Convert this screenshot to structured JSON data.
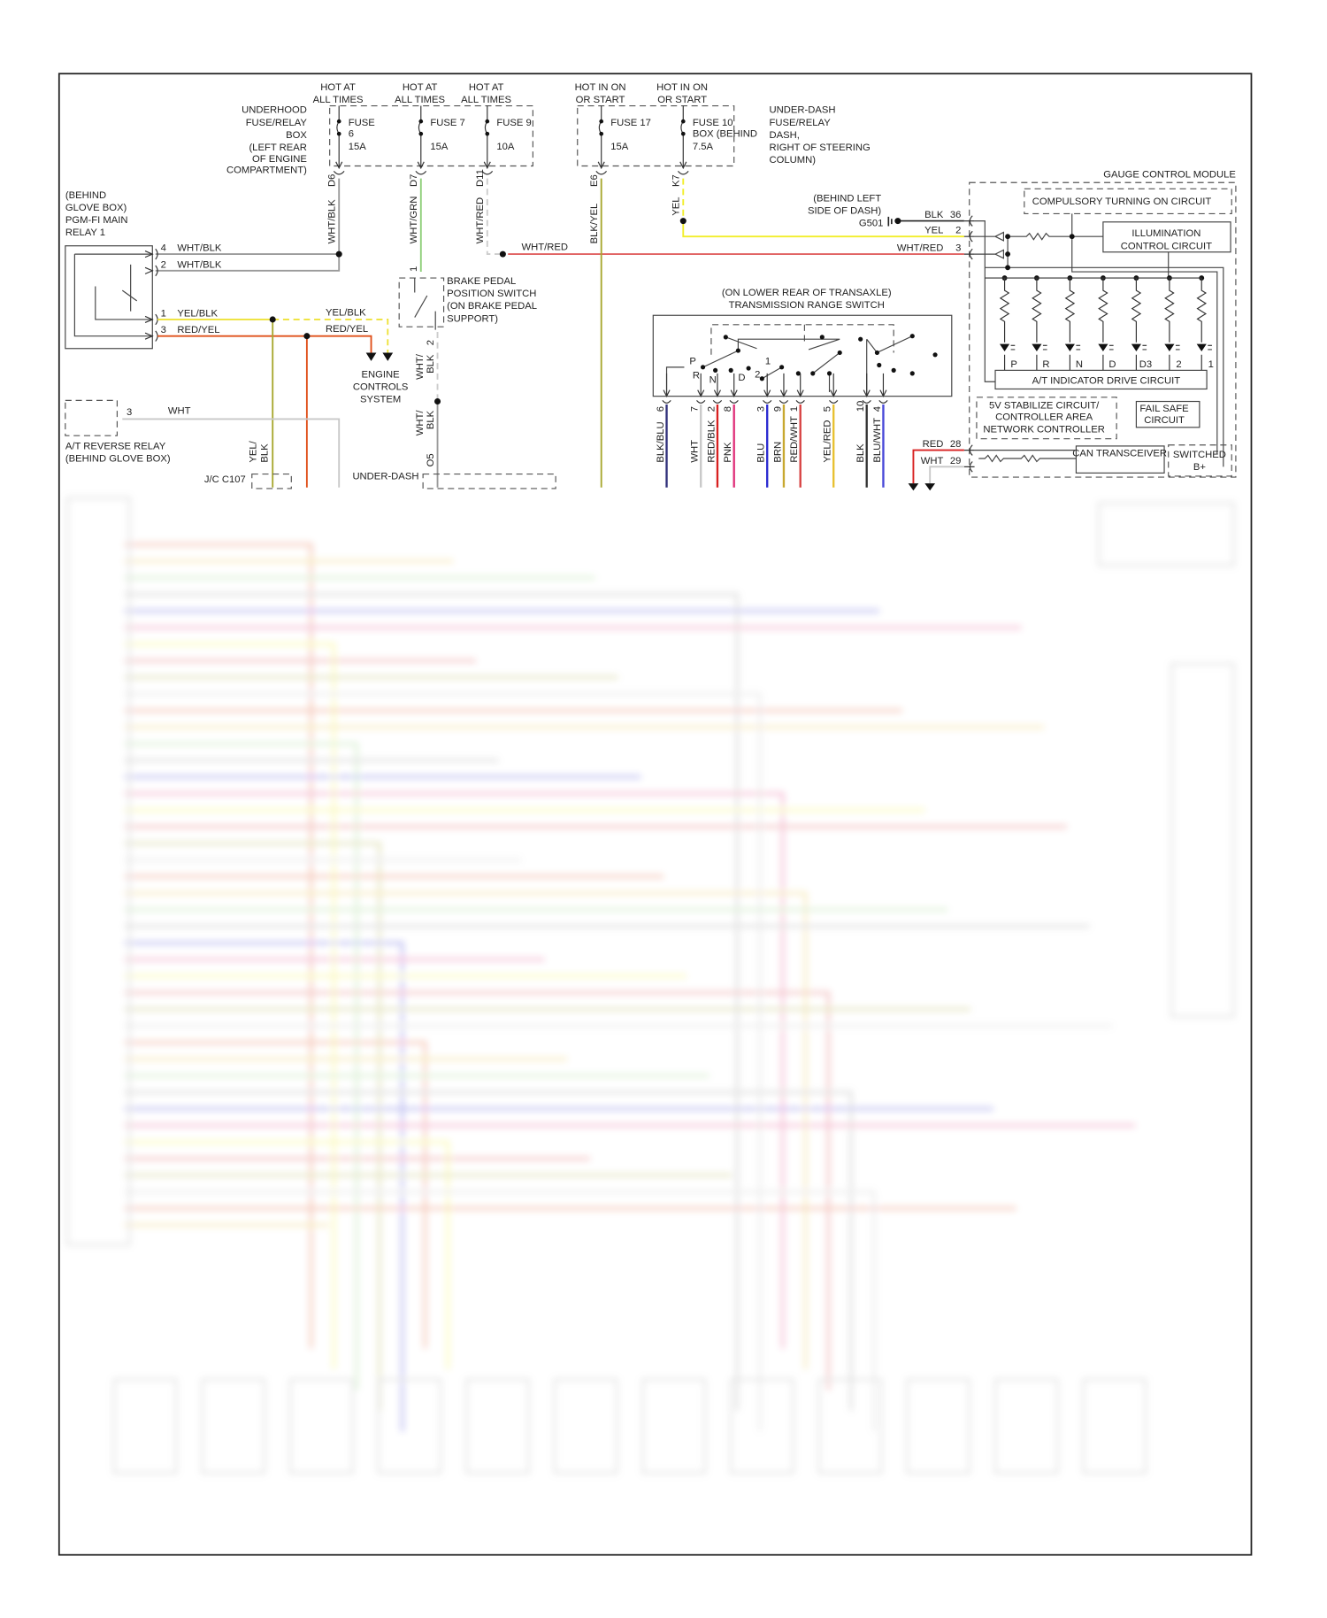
{
  "colors": {
    "wht_blk": "#9a9a9a",
    "wht_grn": "#8fd07a",
    "wht_red": "#cccccc",
    "blk_yel": "#a8a830",
    "yel": "#f2ee2a",
    "yel_blk": "#eee23a",
    "red_yel": "#e0501a",
    "red": "#d82020",
    "wht": "#c8c8c8",
    "blk_blu": "#30307a",
    "pnk": "#e0307a",
    "blu": "#2a2ad0",
    "brn": "#c8a830",
    "red_wht": "#d84040",
    "yel_red": "#e8c030",
    "blk": "#333333",
    "blu_wht": "#4848d8"
  },
  "fuses": {
    "hot": [
      [
        "HOT AT",
        "ALL TIMES"
      ],
      [
        "HOT AT",
        "ALL TIMES"
      ],
      [
        "HOT AT",
        "ALL TIMES"
      ],
      [
        "HOT IN ON",
        "OR START"
      ],
      [
        "HOT IN ON",
        "OR START"
      ]
    ],
    "underhood_label": [
      "UNDERHOOD",
      "FUSE/RELAY",
      "BOX",
      "(LEFT REAR",
      "OF ENGINE",
      "COMPARTMENT)"
    ],
    "items": [
      [
        "FUSE",
        "6",
        "15A"
      ],
      [
        "FUSE 7",
        "",
        "15A"
      ],
      [
        "FUSE 9",
        "",
        "10A"
      ],
      [
        "FUSE 17",
        "",
        "15A"
      ],
      [
        "FUSE 10",
        "BOX (BEHIND",
        "7.5A"
      ]
    ],
    "underdash_label": [
      "UNDER-DASH",
      "FUSE/RELAY",
      "DASH,",
      "RIGHT OF STEERING",
      "COLUMN)"
    ],
    "connectors": [
      "D6",
      "D7",
      "D11",
      "E6",
      "K7"
    ],
    "wires": [
      "WHT/BLK",
      "WHT/GRN",
      "WHT/RED",
      "BLK/YEL",
      "YEL"
    ]
  },
  "relay": {
    "label": [
      "(BEHIND",
      "GLOVE BOX)",
      "PGM-FI MAIN",
      "RELAY 1"
    ],
    "pins": [
      "4",
      "2",
      "1",
      "3"
    ],
    "wires": [
      "WHT/BLK",
      "WHT/BLK",
      "YEL/BLK",
      "RED/YEL"
    ],
    "wires2": [
      "YEL/BLK",
      "RED/YEL"
    ]
  },
  "wht_red_label": "WHT/RED",
  "brake_switch": {
    "label": [
      "BRAKE PEDAL",
      "POSITION SWITCH",
      "(ON BRAKE PEDAL",
      "SUPPORT)"
    ],
    "pins": [
      "1",
      "2"
    ],
    "wire": "WHT/BLK",
    "wire_lines": [
      "WHT/",
      "BLK"
    ],
    "pin_o5": "O5"
  },
  "engine_controls": [
    "ENGINE",
    "CONTROLS",
    "SYSTEM"
  ],
  "reverse_relay": {
    "label": [
      "A/T REVERSE RELAY",
      "(BEHIND GLOVE BOX)"
    ],
    "pin": "3",
    "wire": "WHT"
  },
  "yel_blk_vertical": [
    "YEL/",
    "BLK"
  ],
  "jc": "J/C C107",
  "underdash_bottom": "UNDER-DASH",
  "ground": {
    "label": [
      "(BEHIND LEFT",
      "SIDE OF DASH)"
    ],
    "id": "G501"
  },
  "gcm": {
    "title": "GAUGE CONTROL MODULE",
    "compulsory": "COMPULSORY TURNING ON CIRCUIT",
    "illumination": [
      "ILLUMINATION",
      "CONTROL CIRCUIT"
    ],
    "indicator": "A/T INDICATOR DRIVE CIRCUIT",
    "leds": [
      "P",
      "R",
      "N",
      "D",
      "D3",
      "2",
      "1"
    ],
    "stabilize": [
      "5V STABILIZE CIRCUIT/",
      "CONTROLLER AREA",
      "NETWORK CONTROLLER"
    ],
    "failsafe": [
      "FAIL SAFE",
      "CIRCUIT"
    ],
    "can": "CAN TRANSCEIVER",
    "switched": [
      "SWITCHED",
      "B+"
    ],
    "pins": [
      {
        "wire": "BLK",
        "pin": "36"
      },
      {
        "wire": "YEL",
        "pin": "2"
      },
      {
        "wire": "WHT/RED",
        "pin": "3"
      },
      {
        "wire": "RED",
        "pin": "28"
      },
      {
        "wire": "WHT",
        "pin": "29"
      }
    ]
  },
  "trs": {
    "label": [
      "(ON LOWER REAR OF TRANSAXLE)",
      "TRANSMISSION RANGE SWITCH"
    ],
    "positions": [
      "P",
      "R",
      "N",
      "D",
      "1",
      "2"
    ],
    "pins": [
      {
        "pin": "6",
        "wire": "BLK/BLU",
        "color": "#30307a"
      },
      {
        "pin": "7",
        "wire": "WHT",
        "color": "#c8c8c8"
      },
      {
        "pin": "2",
        "wire": "RED/BLK",
        "color": "#d82020"
      },
      {
        "pin": "8",
        "wire": "PNK",
        "color": "#e0307a"
      },
      {
        "pin": "3",
        "wire": "BLU",
        "color": "#2a2ad0"
      },
      {
        "pin": "9",
        "wire": "BRN",
        "color": "#c8a830"
      },
      {
        "pin": "1",
        "wire": "RED/WHT",
        "color": "#d84040"
      },
      {
        "pin": "5",
        "wire": "YEL/RED",
        "color": "#e8c030"
      },
      {
        "pin": "10",
        "wire": "BLK",
        "color": "#333333"
      },
      {
        "pin": "4",
        "wire": "BLU/WHT",
        "color": "#4848d8"
      }
    ]
  }
}
